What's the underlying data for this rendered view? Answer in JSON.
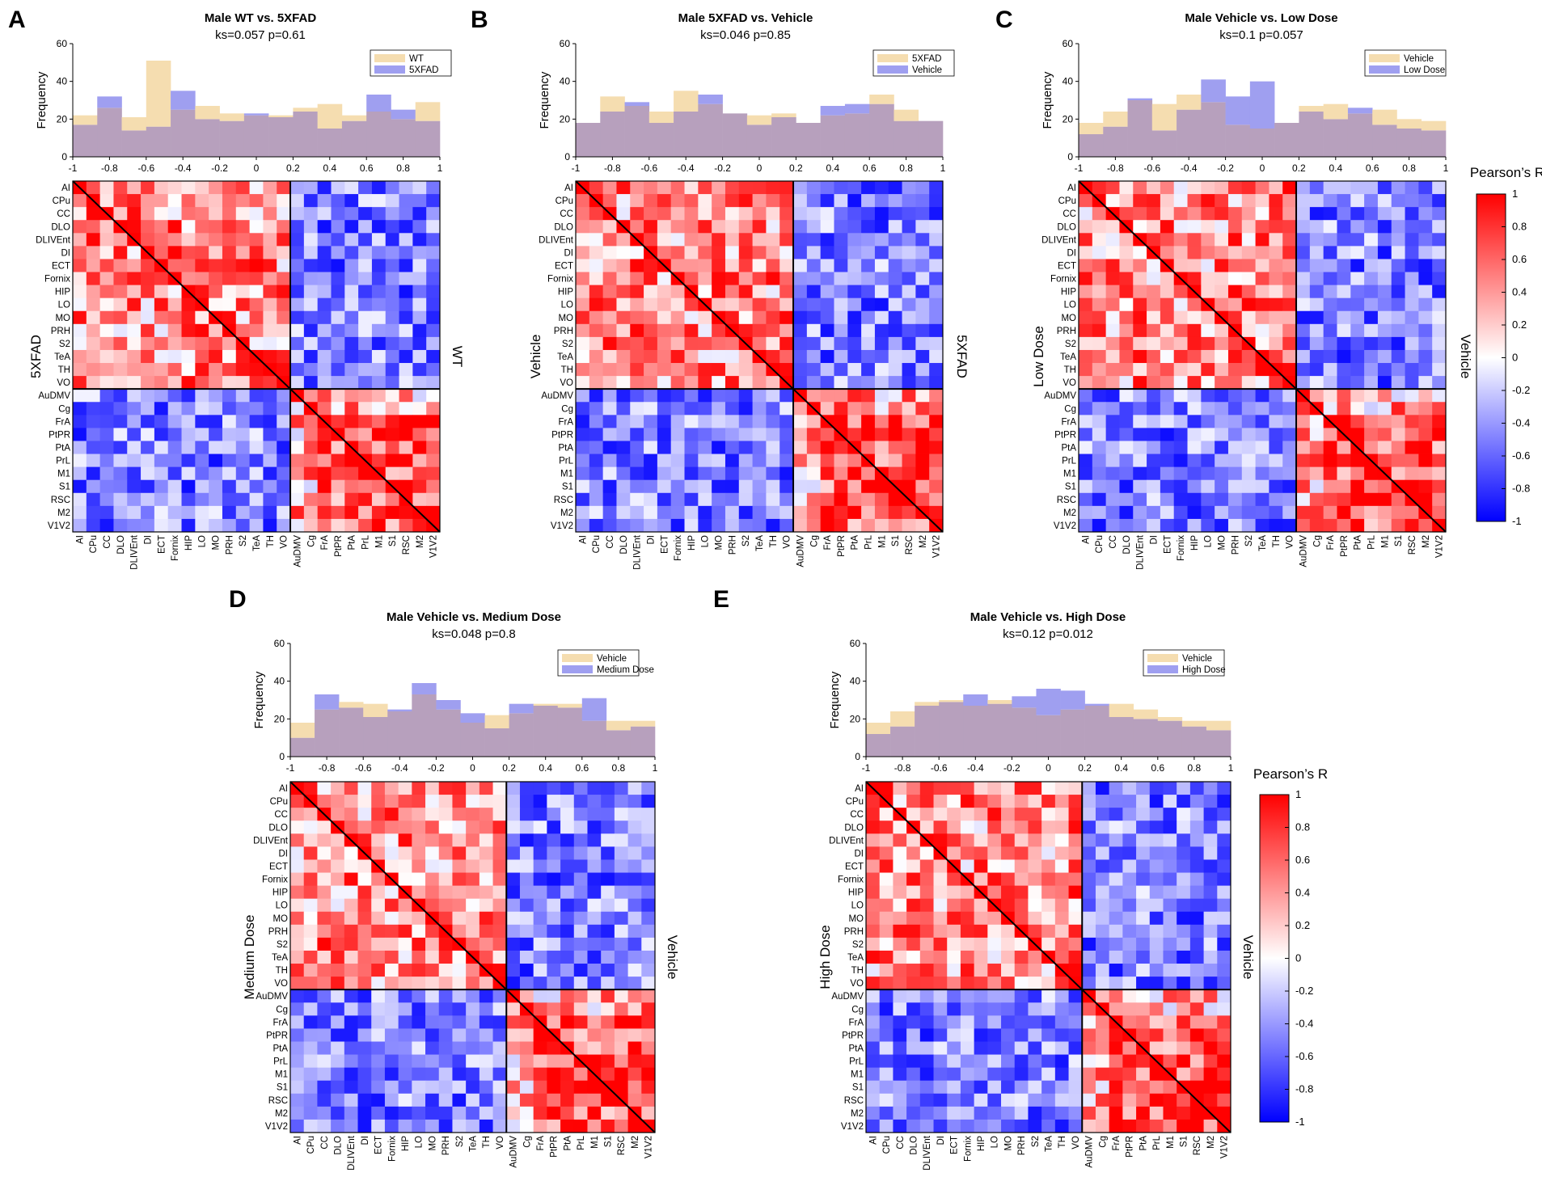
{
  "chart_data": {
    "type": "heatmap",
    "rois": [
      "AI",
      "CPu",
      "CC",
      "DLO",
      "DLIVEnt",
      "DI",
      "ECT",
      "Fornix",
      "HIP",
      "LO",
      "MO",
      "PRH",
      "S2",
      "TeA",
      "TH",
      "VO",
      "AuDMV",
      "Cg",
      "FrA",
      "PtPR",
      "PtA",
      "PrL",
      "M1",
      "S1",
      "RSC",
      "M2",
      "V1V2"
    ],
    "module_split_after": "VO",
    "histogram": {
      "ylabel": "Frequency",
      "ylim": [
        0,
        60
      ],
      "yticks": [
        0,
        20,
        40,
        60
      ],
      "xlim": [
        -1,
        1
      ],
      "xticks": [
        -1,
        -0.8,
        -0.6,
        -0.4,
        -0.2,
        0,
        0.2,
        0.4,
        0.6,
        0.8,
        1
      ],
      "xtick_labels": [
        "-1",
        "-0.8",
        "-0.6",
        "-0.4",
        "-0.2",
        "0",
        "0.2",
        "0.4",
        "0.6",
        "0.8",
        "1"
      ]
    },
    "colorbar": {
      "title": "Pearson’s R",
      "range": [
        -1,
        1
      ],
      "ticks": [
        "1",
        "0.8",
        "0.6",
        "0.4",
        "0.2",
        "0",
        "-0.2",
        "-0.4",
        "-0.6",
        "-0.8",
        "-1"
      ],
      "colors": {
        "negative": "#0000ff",
        "zero": "#ffffff",
        "positive": "#ff0000"
      }
    },
    "series_colors": {
      "first": "#f5ddb0",
      "second": "#9f9ff0",
      "overlap": "#b7a0bd"
    },
    "panels": [
      {
        "letter": "A",
        "title": "Male WT vs. 5XFAD",
        "stats": "ks=0.057 p=0.61",
        "series": [
          {
            "name": "WT",
            "values": [
              22,
              26,
              21,
              51,
              25,
              27,
              23,
              22,
              22,
              26,
              28,
              22,
              24,
              20,
              29
            ]
          },
          {
            "name": "5XFAD",
            "values": [
              17,
              32,
              14,
              16,
              35,
              20,
              19,
              23,
              21,
              24,
              15,
              19,
              33,
              25,
              19
            ]
          }
        ],
        "upper_label": "WT",
        "lower_label": "5XFAD"
      },
      {
        "letter": "B",
        "title": "Male 5XFAD vs. Vehicle",
        "stats": "ks=0.046 p=0.85",
        "series": [
          {
            "name": "5XFAD",
            "values": [
              18,
              32,
              27,
              24,
              35,
              28,
              23,
              22,
              23,
              18,
              22,
              23,
              33,
              25,
              19
            ]
          },
          {
            "name": "Vehicle",
            "values": [
              18,
              24,
              29,
              18,
              24,
              33,
              23,
              17,
              21,
              18,
              27,
              28,
              28,
              19,
              19
            ]
          }
        ],
        "upper_label": "5XFAD",
        "lower_label": "Vehicle"
      },
      {
        "letter": "C",
        "title": "Male Vehicle vs. Low Dose",
        "stats": "ks=0.1 p=0.057",
        "series": [
          {
            "name": "Vehicle",
            "values": [
              18,
              24,
              30,
              28,
              33,
              29,
              17,
              15,
              18,
              27,
              28,
              23,
              25,
              20,
              19
            ]
          },
          {
            "name": "Low Dose",
            "values": [
              12,
              16,
              31,
              14,
              25,
              41,
              32,
              40,
              18,
              24,
              20,
              26,
              17,
              15,
              14
            ]
          }
        ],
        "upper_label": "Vehicle",
        "lower_label": "Low Dose"
      },
      {
        "letter": "D",
        "title": "Male Vehicle vs. Medium Dose",
        "stats": "ks=0.048 p=0.8",
        "series": [
          {
            "name": "Vehicle",
            "values": [
              18,
              25,
              29,
              28,
              24,
              33,
              25,
              18,
              22,
              23,
              28,
              28,
              19,
              19,
              19
            ]
          },
          {
            "name": "Medium Dose",
            "values": [
              10,
              33,
              26,
              21,
              25,
              39,
              30,
              23,
              15,
              28,
              27,
              26,
              31,
              14,
              16
            ]
          }
        ],
        "upper_label": "Vehicle",
        "lower_label": "Medium Dose"
      },
      {
        "letter": "E",
        "title": "Male Vehicle vs. High Dose",
        "stats": "ks=0.12 p=0.012",
        "series": [
          {
            "name": "Vehicle",
            "values": [
              18,
              24,
              29,
              30,
              27,
              30,
              26,
              22,
              25,
              27,
              28,
              25,
              21,
              19,
              19
            ]
          },
          {
            "name": "High Dose",
            "values": [
              12,
              16,
              27,
              29,
              33,
              28,
              32,
              36,
              35,
              28,
              21,
              20,
              19,
              16,
              14
            ]
          }
        ],
        "upper_label": "Vehicle",
        "lower_label": "High Dose"
      }
    ]
  }
}
